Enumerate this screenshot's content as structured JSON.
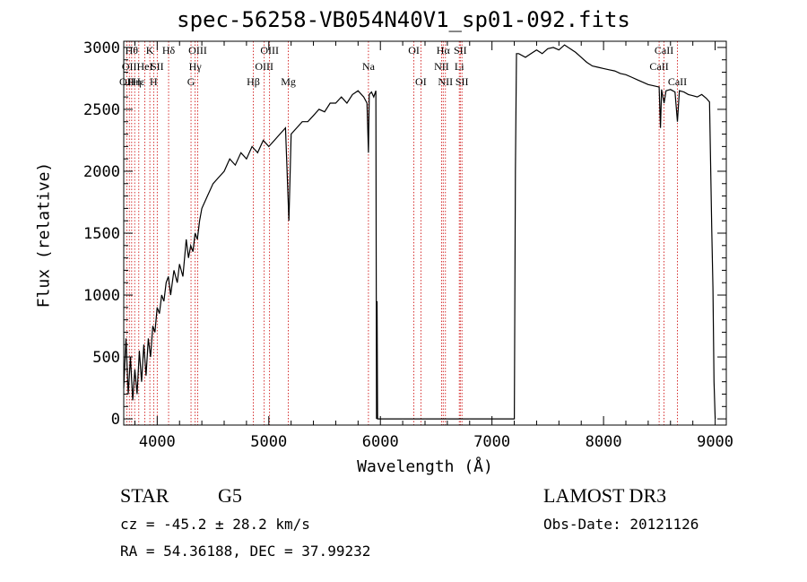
{
  "chart_data": {
    "type": "line",
    "title": "spec-56258-VB054N40V1_sp01-092.fits",
    "xlabel": "Wavelength (Å)",
    "ylabel": "Flux (relative)",
    "xlim": [
      3700,
      9100
    ],
    "ylim": [
      -50,
      3050
    ],
    "xticks": [
      4000,
      5000,
      6000,
      7000,
      8000,
      9000
    ],
    "yticks": [
      0,
      500,
      1000,
      1500,
      2000,
      2500,
      3000
    ],
    "xtick_labels": [
      "4000",
      "5000",
      "6000",
      "7000",
      "8000",
      "9000"
    ],
    "ytick_labels": [
      "0",
      "500",
      "1000",
      "1500",
      "2000",
      "2500",
      "3000"
    ],
    "series": [
      {
        "name": "flux",
        "x": [
          3700,
          3720,
          3740,
          3760,
          3780,
          3800,
          3820,
          3840,
          3860,
          3880,
          3900,
          3920,
          3940,
          3960,
          3980,
          4000,
          4020,
          4040,
          4060,
          4080,
          4100,
          4120,
          4150,
          4180,
          4200,
          4230,
          4260,
          4280,
          4300,
          4320,
          4340,
          4360,
          4380,
          4400,
          4450,
          4500,
          4550,
          4600,
          4650,
          4700,
          4750,
          4800,
          4850,
          4900,
          4950,
          5000,
          5050,
          5100,
          5150,
          5180,
          5200,
          5250,
          5300,
          5350,
          5400,
          5450,
          5500,
          5550,
          5600,
          5650,
          5700,
          5750,
          5800,
          5850,
          5880,
          5893,
          5900,
          5920,
          5940,
          5960,
          5965,
          5970,
          5975,
          5980,
          6000,
          6500,
          7000,
          7200,
          7210,
          7220,
          7240,
          7300,
          7350,
          7400,
          7450,
          7500,
          7550,
          7600,
          7650,
          7700,
          7750,
          7800,
          7850,
          7900,
          7950,
          8000,
          8050,
          8100,
          8150,
          8200,
          8250,
          8300,
          8350,
          8400,
          8450,
          8498,
          8510,
          8520,
          8542,
          8560,
          8600,
          8640,
          8662,
          8680,
          8720,
          8760,
          8800,
          8840,
          8880,
          8920,
          8950,
          8970,
          8980,
          8990,
          9000
        ],
        "y": [
          250,
          650,
          200,
          500,
          150,
          400,
          200,
          550,
          300,
          600,
          350,
          650,
          500,
          750,
          700,
          900,
          850,
          1000,
          950,
          1100,
          1150,
          1000,
          1200,
          1100,
          1250,
          1150,
          1450,
          1300,
          1400,
          1350,
          1500,
          1450,
          1600,
          1700,
          1800,
          1900,
          1950,
          2000,
          2100,
          2050,
          2150,
          2100,
          2200,
          2150,
          2250,
          2200,
          2250,
          2300,
          2350,
          1600,
          2300,
          2350,
          2400,
          2400,
          2450,
          2500,
          2480,
          2550,
          2550,
          2600,
          2550,
          2620,
          2650,
          2600,
          2550,
          2150,
          2620,
          2640,
          2600,
          2650,
          0,
          950,
          0,
          0,
          0,
          0,
          0,
          0,
          2000,
          2950,
          2950,
          2920,
          2950,
          2980,
          2950,
          2990,
          3000,
          2980,
          3020,
          2990,
          2960,
          2920,
          2880,
          2850,
          2840,
          2830,
          2820,
          2810,
          2790,
          2780,
          2760,
          2740,
          2720,
          2700,
          2690,
          2680,
          2350,
          2660,
          2550,
          2650,
          2660,
          2640,
          2400,
          2650,
          2640,
          2620,
          2610,
          2600,
          2620,
          2590,
          2560,
          1520,
          1060,
          300,
          0
        ]
      }
    ],
    "line_markers": [
      {
        "wave": 3727,
        "label": "OII",
        "row": 2
      },
      {
        "wave": 3750,
        "label": "OII",
        "row": 1
      },
      {
        "wave": 3771,
        "label": "Hθ",
        "row": 0
      },
      {
        "wave": 3798,
        "label": "Hη",
        "row": 2
      },
      {
        "wave": 3835,
        "label": "Hε",
        "row": 2
      },
      {
        "wave": 3889,
        "label": "HeI",
        "row": 1
      },
      {
        "wave": 3934,
        "label": "K",
        "row": 0
      },
      {
        "wave": 3968,
        "label": "H",
        "row": 2
      },
      {
        "wave": 4000,
        "label": "SII",
        "row": 1
      },
      {
        "wave": 4102,
        "label": "Hδ",
        "row": 0
      },
      {
        "wave": 4303,
        "label": "G",
        "row": 2
      },
      {
        "wave": 4340,
        "label": "Hγ",
        "row": 1
      },
      {
        "wave": 4363,
        "label": "OIII",
        "row": 0
      },
      {
        "wave": 4861,
        "label": "Hβ",
        "row": 2
      },
      {
        "wave": 4959,
        "label": "OIII",
        "row": 1
      },
      {
        "wave": 5007,
        "label": "OIII",
        "row": 0
      },
      {
        "wave": 5175,
        "label": "Mg",
        "row": 2
      },
      {
        "wave": 5893,
        "label": "Na",
        "row": 1
      },
      {
        "wave": 6300,
        "label": "OI",
        "row": 0
      },
      {
        "wave": 6363,
        "label": "OI",
        "row": 2
      },
      {
        "wave": 6548,
        "label": "NII",
        "row": 1
      },
      {
        "wave": 6563,
        "label": "Hα",
        "row": 0
      },
      {
        "wave": 6583,
        "label": "NII",
        "row": 2
      },
      {
        "wave": 6707,
        "label": "Li",
        "row": 1
      },
      {
        "wave": 6716,
        "label": "SII",
        "row": 0
      },
      {
        "wave": 6731,
        "label": "SII",
        "row": 2
      },
      {
        "wave": 8498,
        "label": "CaII",
        "row": 1
      },
      {
        "wave": 8542,
        "label": "CaII",
        "row": 0
      },
      {
        "wave": 8662,
        "label": "CaII",
        "row": 2
      }
    ]
  },
  "info": {
    "object_class": "STAR",
    "subclass": "G5",
    "survey": "LAMOST DR3",
    "redshift": "cz = -45.2 ± 28.2 km/s",
    "obs_date": "Obs-Date: 20121126",
    "coords": "RA =  54.36188, DEC =  37.99232"
  }
}
